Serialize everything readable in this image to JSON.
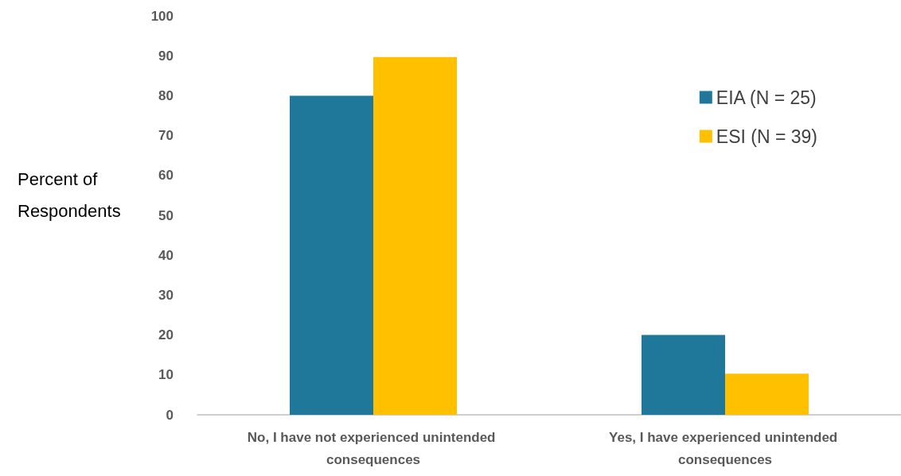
{
  "chart_data": {
    "type": "bar",
    "ylabel": "Percent of Respondents",
    "categories": [
      "No, I have not experienced unintended consequences",
      "Yes, I have experienced unintended consequences"
    ],
    "series": [
      {
        "name": "EIA (N = 25)",
        "color": "#1f7899",
        "values": [
          80,
          20
        ]
      },
      {
        "name": "ESI (N = 39)",
        "color": "#ffc000",
        "values": [
          89.7,
          10.3
        ]
      }
    ],
    "ylim": [
      0,
      100
    ],
    "yticks": [
      0,
      10,
      20,
      30,
      40,
      50,
      60,
      70,
      80,
      90,
      100
    ],
    "grid": false,
    "legend": "top right"
  }
}
